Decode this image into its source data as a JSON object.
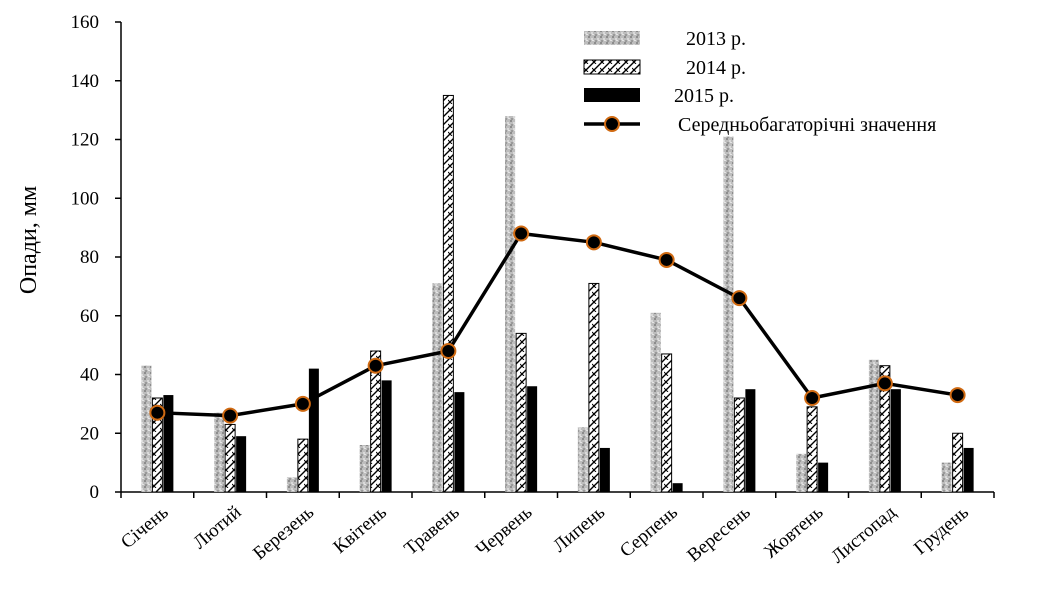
{
  "chart_data": {
    "type": "bar",
    "ylabel": "Опади, мм",
    "xlabel": "",
    "title": "",
    "ylim": [
      0,
      160
    ],
    "yticks": [
      0,
      20,
      40,
      60,
      80,
      100,
      120,
      140,
      160
    ],
    "grid": false,
    "legend_position": "top-right",
    "categories": [
      "Січень",
      "Лютий",
      "Березень",
      "Квітень",
      "Травень",
      "Червень",
      "Липень",
      "Серпень",
      "Вересень",
      "Жовтень",
      "Листопад",
      "Грудень"
    ],
    "series": [
      {
        "name": "2013 р.",
        "type": "bar",
        "pattern": "gray-texture",
        "values": [
          43,
          27,
          5,
          16,
          71,
          128,
          22,
          61,
          121,
          13,
          45,
          10
        ]
      },
      {
        "name": "2014 р.",
        "type": "bar",
        "pattern": "hatch",
        "values": [
          32,
          23,
          18,
          48,
          135,
          54,
          71,
          47,
          32,
          29,
          43,
          20
        ]
      },
      {
        "name": "2015 р.",
        "type": "bar",
        "pattern": "solid-black",
        "values": [
          33,
          19,
          42,
          38,
          34,
          36,
          15,
          3,
          35,
          10,
          35,
          15
        ]
      },
      {
        "name": "Середньобагаторічні значення",
        "type": "line",
        "marker": "circle",
        "values": [
          27,
          26,
          30,
          43,
          48,
          88,
          85,
          79,
          66,
          32,
          37,
          33
        ]
      }
    ],
    "colors": {
      "gray_bar": "#a9a9a9",
      "hatch_stroke": "#000000",
      "solid_bar": "#000000",
      "line": "#000000",
      "marker_fill": "#000000",
      "marker_edge": "#d06a12"
    }
  }
}
